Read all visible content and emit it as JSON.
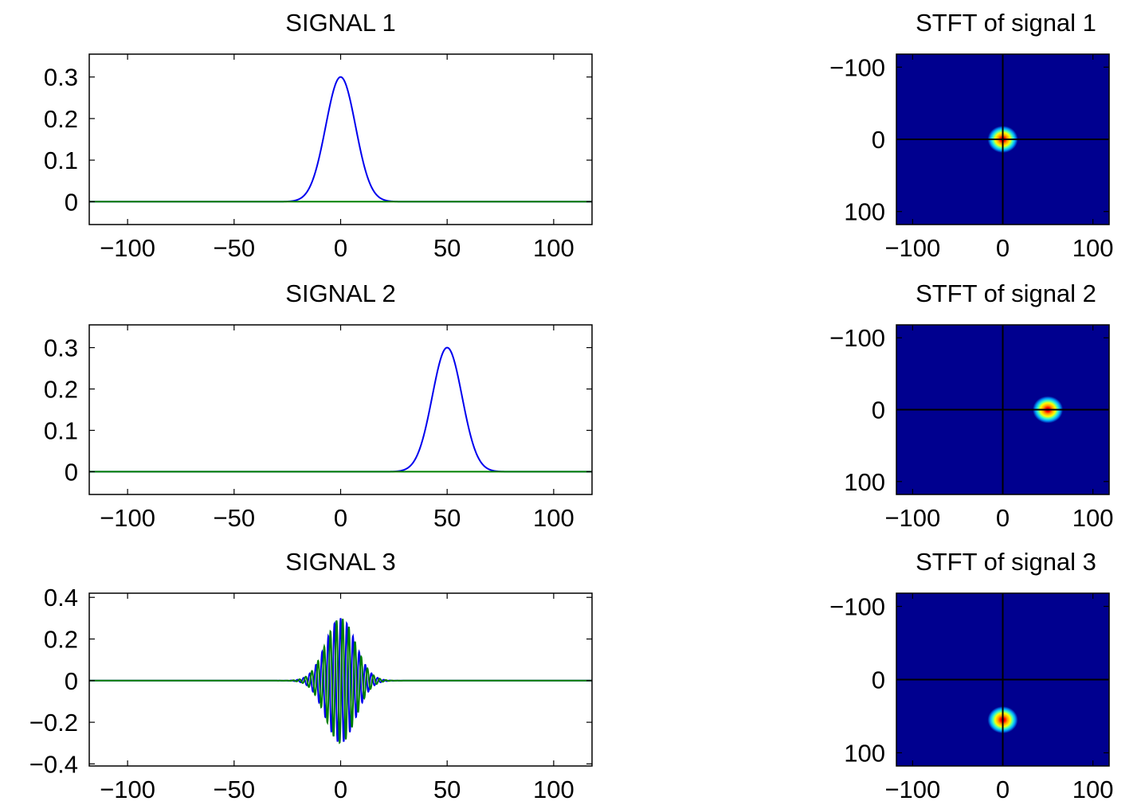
{
  "figure": {
    "charts": [
      {
        "type": "line",
        "title": "SIGNAL 1",
        "xlim": [
          -118,
          118
        ],
        "ylim": [
          -0.055,
          0.355
        ],
        "xticks": [
          -100,
          -50,
          0,
          50,
          100
        ],
        "xtick_labels": [
          "−100",
          "−50",
          "0",
          "50",
          "100"
        ],
        "yticks": [
          0,
          0.1,
          0.2,
          0.3
        ],
        "ytick_labels": [
          "0",
          "0.1",
          "0.2",
          "0.3"
        ],
        "series": [
          {
            "color": "#0000ee",
            "kind": "gauss",
            "amplitude": 0.3,
            "center": 0,
            "width": 7.0
          },
          {
            "color": "#008000",
            "kind": "zero"
          }
        ]
      },
      {
        "type": "line",
        "title": "SIGNAL 2",
        "xlim": [
          -118,
          118
        ],
        "ylim": [
          -0.055,
          0.355
        ],
        "xticks": [
          -100,
          -50,
          0,
          50,
          100
        ],
        "xtick_labels": [
          "−100",
          "−50",
          "0",
          "50",
          "100"
        ],
        "yticks": [
          0,
          0.1,
          0.2,
          0.3
        ],
        "ytick_labels": [
          "0",
          "0.1",
          "0.2",
          "0.3"
        ],
        "series": [
          {
            "color": "#0000ee",
            "kind": "gauss",
            "amplitude": 0.3,
            "center": 50,
            "width": 7.0
          },
          {
            "color": "#008000",
            "kind": "zero"
          }
        ]
      },
      {
        "type": "line",
        "title": "SIGNAL 3",
        "xlim": [
          -118,
          118
        ],
        "ylim": [
          -0.41,
          0.42
        ],
        "xticks": [
          -100,
          -50,
          0,
          50,
          100
        ],
        "xtick_labels": [
          "−100",
          "−50",
          "0",
          "50",
          "100"
        ],
        "yticks": [
          -0.4,
          -0.2,
          0,
          0.2,
          0.4
        ],
        "ytick_labels": [
          "−0.4",
          "−0.2",
          "0",
          "0.2",
          "0.4"
        ],
        "series": [
          {
            "color": "#0000ee",
            "kind": "chirp-cos",
            "amplitude": 0.3,
            "center": 0,
            "width": 7.0,
            "period": 2.9
          },
          {
            "color": "#008000",
            "kind": "chirp-sin",
            "amplitude": 0.3,
            "center": 0,
            "width": 7.0,
            "period": 2.9
          }
        ]
      },
      {
        "type": "heatmap",
        "title": "STFT of signal 1",
        "xlim": [
          -118,
          118
        ],
        "ylim": [
          -118,
          118
        ],
        "y_reversed": true,
        "xticks": [
          -100,
          0,
          100
        ],
        "xtick_labels": [
          "−100",
          "0",
          "100"
        ],
        "yticks": [
          -100,
          0,
          100
        ],
        "ytick_labels": [
          "−100",
          "0",
          "100"
        ],
        "peak": [
          0,
          0
        ],
        "crosshair": [
          0,
          0
        ]
      },
      {
        "type": "heatmap",
        "title": "STFT of signal 2",
        "xlim": [
          -118,
          118
        ],
        "ylim": [
          -118,
          118
        ],
        "y_reversed": true,
        "xticks": [
          -100,
          0,
          100
        ],
        "xtick_labels": [
          "−100",
          "0",
          "100"
        ],
        "yticks": [
          -100,
          0,
          100
        ],
        "ytick_labels": [
          "−100",
          "0",
          "100"
        ],
        "peak": [
          50,
          0
        ],
        "crosshair": [
          0,
          0
        ]
      },
      {
        "type": "heatmap",
        "title": "STFT of signal 3",
        "xlim": [
          -118,
          118
        ],
        "ylim": [
          -118,
          118
        ],
        "y_reversed": true,
        "xticks": [
          -100,
          0,
          100
        ],
        "xtick_labels": [
          "−100",
          "0",
          "100"
        ],
        "yticks": [
          -100,
          0,
          100
        ],
        "ytick_labels": [
          "−100",
          "0",
          "100"
        ],
        "peak": [
          0,
          55
        ],
        "crosshair": [
          0,
          0
        ]
      }
    ],
    "colors": {
      "heatmap_background": "#00008f",
      "heatmap_peak": "#ff0000",
      "axis": "#000000"
    }
  }
}
